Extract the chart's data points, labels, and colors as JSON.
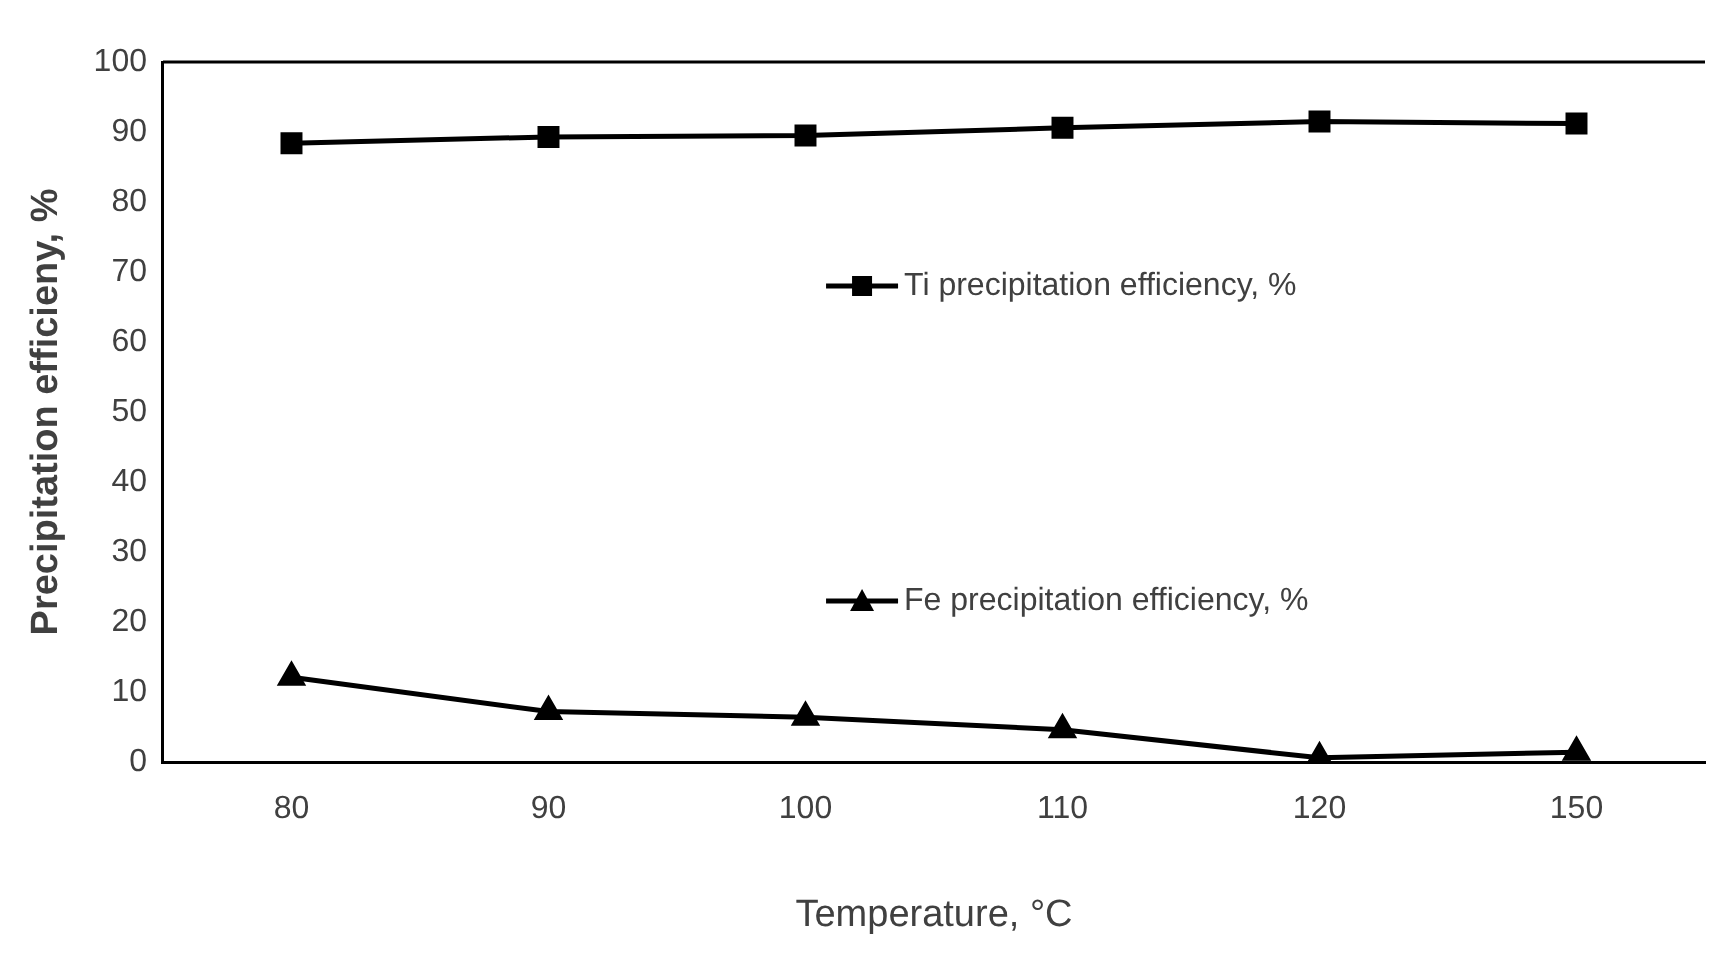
{
  "chart_data": {
    "type": "line",
    "xlabel": "Temperature, °C",
    "ylabel": "Precipitation efficieny, %",
    "categories": [
      "80",
      "90",
      "100",
      "110",
      "120",
      "150"
    ],
    "series": [
      {
        "name": "Ti precipitation efficiency, %",
        "color": "#000000",
        "marker": "square",
        "values": [
          88.4,
          89.3,
          89.5,
          90.6,
          91.5,
          91.2
        ]
      },
      {
        "name": "Fe precipitation efficiency, %",
        "color": "#000000",
        "marker": "triangle",
        "values": [
          12.1,
          7.2,
          6.4,
          4.6,
          0.6,
          1.4
        ]
      }
    ],
    "ylim": [
      0,
      100
    ],
    "yticks": [
      0,
      10,
      20,
      30,
      40,
      50,
      60,
      70,
      80,
      90,
      100
    ],
    "grid": false,
    "legend": "center",
    "line_style": "solid"
  }
}
